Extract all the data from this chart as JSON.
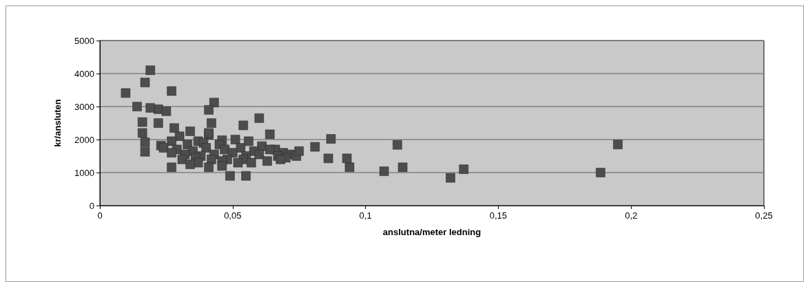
{
  "chart_data": {
    "type": "scatter",
    "xlabel": "anslutna/meter ledning",
    "ylabel": "kr/ansluten",
    "xlim": [
      0,
      0.25
    ],
    "xticks": [
      0,
      {
        "value": 0.05,
        "label": "0,05"
      },
      {
        "value": 0.1,
        "label": "0,1"
      },
      {
        "value": 0.15,
        "label": "0,15"
      },
      {
        "value": 0.2,
        "label": "0,2"
      },
      {
        "value": 0.25,
        "label": "0,25"
      }
    ],
    "ylim": [
      0,
      5000
    ],
    "yticks": [
      0,
      1000,
      2000,
      3000,
      4000,
      5000
    ],
    "grid": "y",
    "marker": "square",
    "series": [
      {
        "color": "#4d4d4d",
        "x": [
          0.0097,
          0.014,
          0.019,
          0.017,
          0.027,
          0.022,
          0.019,
          0.043,
          0.041,
          0.025,
          0.016,
          0.022,
          0.042,
          0.054,
          0.06,
          0.064,
          0.016,
          0.017,
          0.017,
          0.023,
          0.041,
          0.028,
          0.034,
          0.041,
          0.046,
          0.03,
          0.037,
          0.027,
          0.033,
          0.039,
          0.045,
          0.051,
          0.056,
          0.061,
          0.066,
          0.024,
          0.029,
          0.035,
          0.04,
          0.047,
          0.053,
          0.058,
          0.064,
          0.069,
          0.027,
          0.032,
          0.038,
          0.043,
          0.05,
          0.055,
          0.06,
          0.067,
          0.072,
          0.031,
          0.036,
          0.042,
          0.048,
          0.054,
          0.063,
          0.07,
          0.074,
          0.037,
          0.046,
          0.057,
          0.027,
          0.034,
          0.041,
          0.046,
          0.052,
          0.049,
          0.055,
          0.087,
          0.081,
          0.086,
          0.093,
          0.094,
          0.075,
          0.068,
          0.112,
          0.107,
          0.114,
          0.132,
          0.137,
          0.1885,
          0.195
        ],
        "values": [
          3410,
          3000,
          4100,
          3730,
          3470,
          2920,
          2960,
          3120,
          2900,
          2860,
          2530,
          2500,
          2500,
          2430,
          2650,
          2160,
          2200,
          1920,
          1630,
          1820,
          2140,
          2350,
          2250,
          2200,
          1980,
          2100,
          1950,
          1950,
          1850,
          1900,
          1850,
          2000,
          1950,
          1800,
          1700,
          1750,
          1700,
          1650,
          1750,
          1700,
          1750,
          1650,
          1700,
          1600,
          1600,
          1550,
          1500,
          1550,
          1600,
          1500,
          1550,
          1500,
          1550,
          1400,
          1450,
          1400,
          1400,
          1400,
          1350,
          1450,
          1500,
          1300,
          1350,
          1300,
          1160,
          1250,
          1160,
          1200,
          1300,
          900,
          900,
          2020,
          1780,
          1430,
          1430,
          1160,
          1650,
          1400,
          1840,
          1040,
          1160,
          840,
          1100,
          1000,
          1850
        ]
      }
    ]
  }
}
